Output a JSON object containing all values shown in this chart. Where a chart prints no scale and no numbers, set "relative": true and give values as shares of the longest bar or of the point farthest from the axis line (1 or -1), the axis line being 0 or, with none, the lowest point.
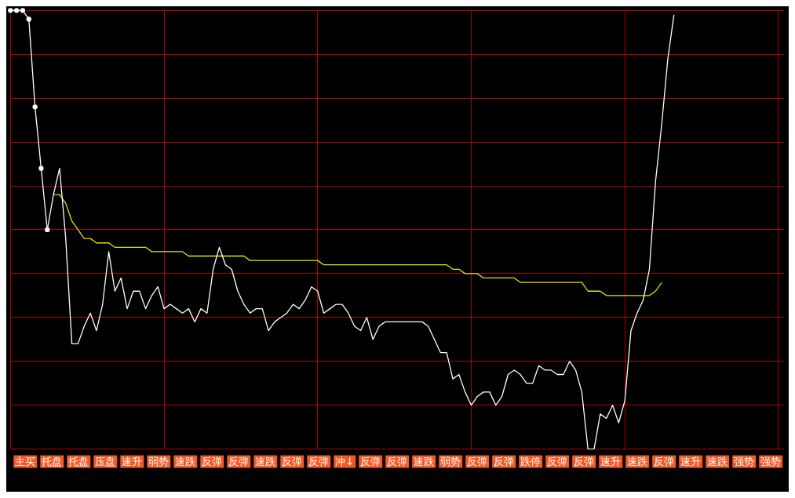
{
  "chart_data": {
    "type": "line",
    "relative": true,
    "grid": true,
    "legend": false,
    "line_style": "solid",
    "categories": [
      null,
      null,
      null,
      null,
      null,
      null,
      null,
      null,
      null,
      null,
      null,
      null,
      null,
      null,
      null,
      null,
      null,
      null,
      null,
      null,
      null,
      null,
      null,
      null,
      null,
      null,
      null,
      null,
      null,
      null,
      null,
      null,
      null,
      null,
      null,
      null,
      null,
      null,
      null,
      null,
      null,
      null,
      null,
      null,
      null,
      null,
      null,
      null,
      null,
      null,
      null,
      null,
      null,
      null,
      null,
      null,
      null,
      null,
      null,
      null,
      null,
      null,
      null,
      null,
      null,
      null,
      null,
      null,
      null,
      null,
      null,
      null,
      null,
      null,
      null,
      null,
      null,
      null,
      null,
      null,
      null,
      null,
      null,
      null,
      null,
      null,
      null,
      null,
      null,
      null,
      null,
      null,
      null,
      null,
      null,
      null,
      null,
      null,
      null,
      null,
      null,
      null,
      null,
      null,
      null,
      null,
      null,
      null,
      null,
      null,
      null,
      null,
      null,
      null,
      null,
      null,
      null,
      null,
      null,
      null,
      null,
      null,
      null,
      null,
      null,
      null,
      null
    ],
    "series": [
      {
        "color": "#ffffff",
        "marker": "circle",
        "values": [
          1.0,
          1.0,
          1.0,
          0.98,
          0.78,
          0.64,
          0.5,
          null,
          null,
          null,
          null,
          null,
          null,
          null,
          null,
          null,
          null,
          null,
          null,
          null,
          null,
          null,
          null,
          null,
          null,
          null,
          null,
          null,
          null,
          null,
          null,
          null,
          null,
          null,
          null,
          null,
          null,
          null,
          null,
          null,
          null,
          null,
          null,
          null,
          null,
          null,
          null,
          null,
          null,
          null,
          null,
          null,
          null,
          null,
          null,
          null,
          null,
          null,
          null,
          null,
          null,
          null,
          null,
          null,
          null,
          null,
          null,
          null,
          null,
          null,
          null,
          null,
          null,
          null,
          null,
          null,
          null,
          null,
          null,
          null,
          null,
          null,
          null,
          null,
          null,
          null,
          null,
          null,
          null,
          null,
          null,
          null,
          null,
          null,
          null,
          null,
          null,
          null,
          null,
          null,
          null,
          null,
          null,
          null,
          null,
          null,
          null,
          null,
          null,
          null,
          null,
          null,
          null,
          null,
          null,
          null,
          null,
          null,
          null,
          null,
          null,
          null,
          null,
          null,
          null,
          null,
          null
        ]
      },
      {
        "color": "#ffffff",
        "marker": "none",
        "values": [
          null,
          null,
          null,
          null,
          null,
          null,
          0.5,
          0.58,
          0.64,
          0.48,
          0.24,
          0.24,
          0.28,
          0.31,
          0.27,
          0.33,
          0.45,
          0.36,
          0.39,
          0.32,
          0.36,
          0.36,
          0.32,
          0.35,
          0.37,
          0.32,
          0.33,
          0.32,
          0.31,
          0.32,
          0.29,
          0.32,
          0.31,
          0.41,
          0.46,
          0.42,
          0.41,
          0.36,
          0.33,
          0.31,
          0.32,
          0.32,
          0.27,
          0.29,
          0.3,
          0.31,
          0.33,
          0.32,
          0.34,
          0.37,
          0.36,
          0.31,
          0.32,
          0.33,
          0.33,
          0.31,
          0.28,
          0.27,
          0.3,
          0.25,
          0.28,
          0.29,
          0.29,
          0.29,
          0.29,
          0.29,
          0.29,
          0.29,
          0.28,
          0.25,
          0.22,
          0.22,
          0.16,
          0.17,
          0.13,
          0.1,
          0.12,
          0.13,
          0.13,
          0.1,
          0.12,
          0.17,
          0.18,
          0.17,
          0.15,
          0.15,
          0.19,
          0.18,
          0.18,
          0.17,
          0.17,
          0.2,
          0.18,
          0.13,
          0,
          0,
          0.08,
          0.07,
          0.1,
          0.06,
          0.11,
          0.27,
          0.31,
          0.34,
          0.41,
          0.61,
          0.74,
          0.89,
          0.99,
          null,
          null,
          null,
          null,
          null,
          null,
          null,
          null,
          null,
          null,
          null,
          null,
          null,
          null,
          null,
          null,
          null,
          null
        ]
      },
      {
        "color": "#e6e600",
        "marker": "none",
        "values": [
          null,
          null,
          null,
          null,
          null,
          null,
          null,
          0.58,
          0.58,
          0.56,
          0.52,
          0.5,
          0.48,
          0.48,
          0.47,
          0.47,
          0.47,
          0.46,
          0.46,
          0.46,
          0.46,
          0.46,
          0.46,
          0.45,
          0.45,
          0.45,
          0.45,
          0.45,
          0.45,
          0.44,
          0.44,
          0.44,
          0.44,
          0.44,
          0.44,
          0.44,
          0.44,
          0.44,
          0.44,
          0.43,
          0.43,
          0.43,
          0.43,
          0.43,
          0.43,
          0.43,
          0.43,
          0.43,
          0.43,
          0.43,
          0.43,
          0.42,
          0.42,
          0.42,
          0.42,
          0.42,
          0.42,
          0.42,
          0.42,
          0.42,
          0.42,
          0.42,
          0.42,
          0.42,
          0.42,
          0.42,
          0.42,
          0.42,
          0.42,
          0.42,
          0.42,
          0.42,
          0.41,
          0.41,
          0.4,
          0.4,
          0.4,
          0.39,
          0.39,
          0.39,
          0.39,
          0.39,
          0.39,
          0.38,
          0.38,
          0.38,
          0.38,
          0.38,
          0.38,
          0.38,
          0.38,
          0.38,
          0.38,
          0.38,
          0.36,
          0.36,
          0.36,
          0.35,
          0.35,
          0.35,
          0.35,
          0.35,
          0.35,
          0.35,
          0.35,
          0.36,
          0.38,
          null,
          null,
          null,
          null,
          null,
          null,
          null,
          null,
          null,
          null,
          null,
          null,
          null,
          null,
          null,
          null,
          null,
          null,
          null,
          null
        ]
      }
    ],
    "annotations": [
      "主买",
      "托盘",
      "托盘",
      "压盘",
      "速升",
      "弱势",
      "速跌",
      "反弹",
      "反弹",
      "速跌",
      "反弹",
      "反弹",
      "冲↓",
      "反弹",
      "反弹",
      "速跌",
      "弱势",
      "反弹",
      "反弹",
      "跌停",
      "反弹",
      "反弹",
      "速升",
      "速跌",
      "反弹",
      "速升",
      "速跌",
      "强势",
      "强势"
    ]
  }
}
